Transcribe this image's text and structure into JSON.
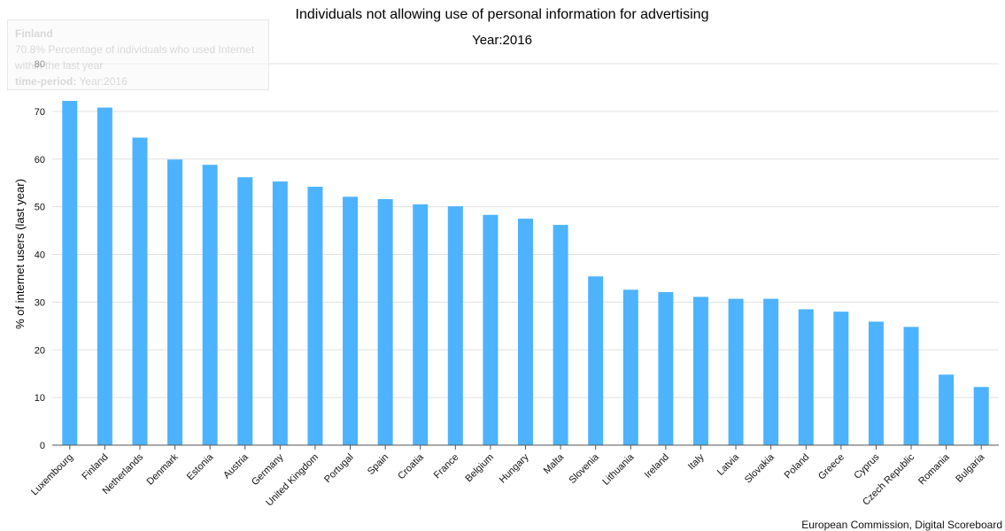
{
  "title": "Individuals not allowing use of personal information for advertising",
  "subtitle": "Year:2016",
  "credits": "European Commission, Digital Scoreboard",
  "colors": {
    "bar": "#4db3ff",
    "grid": "#e0e0e0",
    "axis": "#555555"
  },
  "tooltip": {
    "name": "Finland",
    "value_line": "70.8% Percentage of individuals who used Internet within the last year",
    "period_label": "time-period:",
    "period_value": "Year:2016"
  },
  "chart_data": {
    "type": "bar",
    "title": "Individuals not allowing use of personal information for advertising",
    "subtitle": "Year:2016",
    "xlabel": "",
    "ylabel": "% of internet users (last year)",
    "ylim": [
      0,
      80
    ],
    "yticks": [
      0,
      10,
      20,
      30,
      40,
      50,
      60,
      70,
      80
    ],
    "grid": true,
    "categories": [
      "Luxembourg",
      "Finland",
      "Netherlands",
      "Denmark",
      "Estonia",
      "Austria",
      "Germany",
      "United Kingdom",
      "Portugal",
      "Spain",
      "Croatia",
      "France",
      "Belgium",
      "Hungary",
      "Malta",
      "Slovenia",
      "Lithuania",
      "Ireland",
      "Italy",
      "Latvia",
      "Slovakia",
      "Poland",
      "Greece",
      "Cyprus",
      "Czech Republic",
      "Romania",
      "Bulgaria"
    ],
    "values": [
      72.2,
      70.8,
      64.5,
      59.9,
      58.8,
      56.2,
      55.3,
      54.2,
      52.1,
      51.6,
      50.5,
      50.1,
      48.3,
      47.5,
      46.2,
      35.4,
      32.6,
      32.1,
      31.1,
      30.7,
      30.7,
      28.5,
      28.0,
      25.9,
      24.8,
      14.8,
      12.2
    ]
  }
}
